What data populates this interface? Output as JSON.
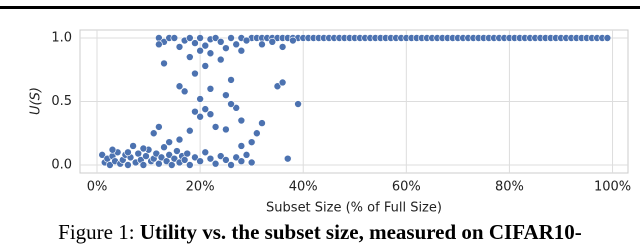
{
  "chart_data": {
    "type": "scatter",
    "caption": {
      "label": "Figure 1:",
      "text": "Utility vs. the subset size, measured on CIFAR10-"
    },
    "xlabel": "Subset Size (% of Full Size)",
    "ylabel": "U(S)",
    "color": "#4c72b0",
    "grid": true,
    "xlim": [
      -3.3,
      103
    ],
    "ylim": [
      -0.063,
      1.063
    ],
    "xticks": [
      {
        "value": 0,
        "label": "0%"
      },
      {
        "value": 20,
        "label": "20%"
      },
      {
        "value": 40,
        "label": "40%"
      },
      {
        "value": 60,
        "label": "60%"
      },
      {
        "value": 80,
        "label": "80%"
      },
      {
        "value": 100,
        "label": "100%"
      }
    ],
    "yticks": [
      {
        "value": 0,
        "label": "0.0"
      },
      0.5,
      {
        "value": 1,
        "label": "1.0"
      }
    ],
    "x": [
      30,
      31,
      32,
      33,
      34,
      35,
      36,
      37,
      38,
      39,
      40,
      41,
      42,
      43,
      44,
      45,
      46,
      47,
      48,
      49,
      50,
      51,
      52,
      53,
      54,
      55,
      56,
      57,
      58,
      59,
      60,
      61,
      62,
      63,
      64,
      65,
      66,
      67,
      68,
      69,
      70,
      71,
      72,
      73,
      74,
      75,
      76,
      77,
      78,
      79,
      80,
      81,
      82,
      83,
      84,
      85,
      86,
      87,
      88,
      89,
      90,
      91,
      92,
      93,
      94,
      95,
      96,
      97,
      98,
      99,
      12,
      13,
      14,
      15,
      16,
      17,
      18,
      19,
      20,
      21,
      22,
      23,
      24,
      25,
      26,
      27,
      28,
      29,
      12,
      20,
      22,
      28,
      34,
      36,
      38,
      32,
      13,
      16,
      17,
      18,
      19,
      20,
      21,
      22,
      22,
      23,
      24,
      25,
      26,
      27,
      28,
      30,
      31,
      32,
      35,
      36,
      39,
      11,
      12,
      14,
      16,
      19,
      21,
      25,
      28,
      37,
      26,
      18,
      20,
      1,
      1.5,
      2,
      2.5,
      3,
      3.5,
      4,
      4.5,
      5,
      5.5,
      6,
      6.5,
      7,
      7.5,
      8,
      8.5,
      9,
      9.5,
      10,
      10.5,
      11,
      11.5,
      12,
      12.5,
      13,
      13.5,
      14,
      14.5,
      15,
      15.5,
      16,
      16.5,
      17,
      17.5,
      18,
      19,
      20,
      21,
      22,
      23,
      24,
      25,
      26,
      27,
      28,
      29,
      30,
      3,
      6,
      9
    ],
    "y": [
      1,
      1,
      1,
      1,
      1,
      1,
      1,
      1,
      1,
      1,
      1,
      1,
      1,
      1,
      1,
      1,
      1,
      1,
      1,
      1,
      1,
      1,
      1,
      1,
      1,
      1,
      1,
      1,
      1,
      1,
      1,
      1,
      1,
      1,
      1,
      1,
      1,
      1,
      1,
      1,
      1,
      1,
      1,
      1,
      1,
      1,
      1,
      1,
      1,
      1,
      1,
      1,
      1,
      1,
      1,
      1,
      1,
      1,
      1,
      1,
      1,
      1,
      1,
      1,
      1,
      1,
      1,
      1,
      1,
      1,
      1,
      0.97,
      1,
      1,
      0.93,
      0.98,
      1,
      0.96,
      1,
      0.94,
      0.99,
      1,
      0.97,
      0.92,
      1,
      0.95,
      1,
      0.98,
      0.95,
      0.9,
      0.88,
      0.9,
      0.97,
      0.93,
      0.98,
      0.95,
      0.8,
      0.62,
      0.58,
      0.85,
      0.72,
      0.52,
      0.78,
      0.6,
      0.4,
      0.3,
      0.83,
      0.55,
      0.67,
      0.45,
      0.35,
      0.18,
      0.25,
      0.33,
      0.62,
      0.65,
      0.48,
      0.25,
      0.3,
      0.18,
      0.2,
      0.42,
      0.44,
      0.28,
      0.15,
      0.05,
      0.48,
      0.27,
      0.38,
      0.08,
      0.02,
      0.05,
      0,
      0.07,
      0.03,
      0.1,
      0.01,
      0.04,
      0.08,
      0,
      0.06,
      0.15,
      0.02,
      0.09,
      0.04,
      0,
      0.07,
      0.12,
      0.03,
      0.05,
      0.09,
      0.01,
      0.06,
      0.14,
      0.03,
      0.08,
      0,
      0.05,
      0.11,
      0.02,
      0.07,
      0.04,
      0.09,
      0,
      0.06,
      0.03,
      0.1,
      0.05,
      0.01,
      0.07,
      0.04,
      0,
      0.06,
      0.03,
      0.08,
      0.02,
      0.12,
      0.1,
      0.13
    ]
  }
}
